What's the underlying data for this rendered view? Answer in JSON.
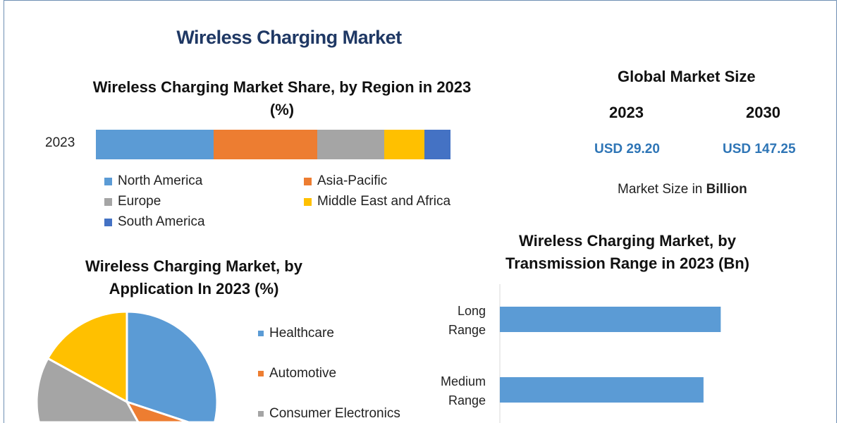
{
  "title": "Wireless Charging Market",
  "global": {
    "heading": "Global Market Size",
    "year1": "2023",
    "year2": "2030",
    "value1": "USD 29.20",
    "value2": "USD 147.25",
    "note_prefix": "Market Size in ",
    "note_bold": "Billion",
    "value_color": "#2e75b6"
  },
  "chart_data": [
    {
      "type": "bar",
      "orientation": "horizontal-stacked",
      "title": "Wireless Charging Market Share, by Region in 2023 (%)",
      "categories": [
        "2023"
      ],
      "series": [
        {
          "name": "North America",
          "values": [
            33.2
          ],
          "color": "#5b9bd5"
        },
        {
          "name": "Asia-Pacific",
          "values": [
            29.2
          ],
          "color": "#ed7d31"
        },
        {
          "name": "Europe",
          "values": [
            18.9
          ],
          "color": "#a5a5a5"
        },
        {
          "name": "Middle East and Africa",
          "values": [
            11.3
          ],
          "color": "#ffc000"
        },
        {
          "name": "South America",
          "values": [
            7.4
          ],
          "color": "#4472c4"
        }
      ],
      "legend": "bottom"
    },
    {
      "type": "pie",
      "title": "Wireless Charging Market, by Application In 2023 (%)",
      "slices": [
        {
          "name": "Healthcare",
          "value": 38,
          "color": "#5b9bd5"
        },
        {
          "name": "Automotive",
          "value": 10,
          "color": "#ed7d31"
        },
        {
          "name": "Consumer Electronics",
          "value": 35,
          "color": "#a5a5a5"
        },
        {
          "name": "",
          "value": 17,
          "color": "#ffc000"
        }
      ],
      "legend": "right"
    },
    {
      "type": "bar",
      "orientation": "horizontal",
      "title": "Wireless Charging Market, by Transmission Range in 2023 (Bn)",
      "categories": [
        "Long Range",
        "Medium Range"
      ],
      "category_lines": [
        [
          "Long",
          "Range"
        ],
        [
          "Medium",
          "Range"
        ]
      ],
      "values": [
        14.1,
        13.0
      ],
      "xlim": [
        0,
        18
      ],
      "color": "#5b9bd5"
    }
  ]
}
